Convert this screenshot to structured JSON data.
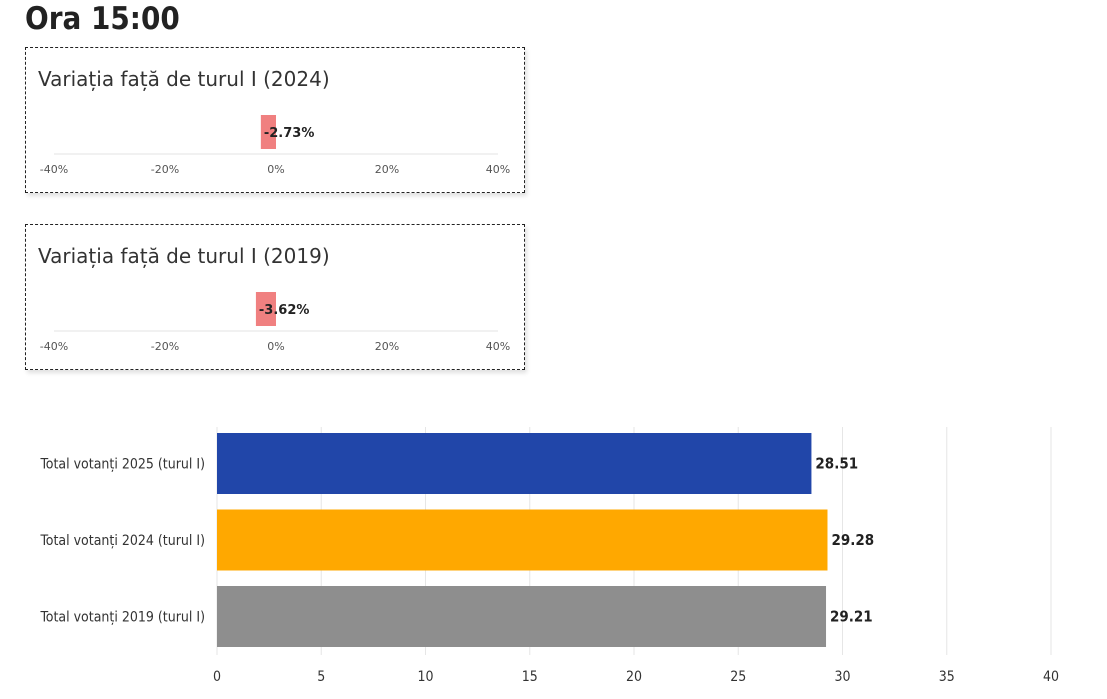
{
  "page": {
    "title": "Ora 15:00"
  },
  "colors": {
    "variation_bar": "#f08080",
    "bar_2025": "#2146a9",
    "bar_2024": "#ffa800",
    "bar_2019": "#8e8e8e",
    "grid": "#e6e6e6"
  },
  "chart_data": [
    {
      "type": "bar",
      "orientation": "horizontal",
      "title": "Variația față de turul I (2024)",
      "values": [
        -2.73
      ],
      "value_labels": [
        "-2.73%"
      ],
      "xlim": [
        -40,
        40
      ],
      "ticks": [
        -40,
        -20,
        0,
        20,
        40
      ],
      "tick_labels": [
        "-40%",
        "-20%",
        "0%",
        "20%",
        "40%"
      ]
    },
    {
      "type": "bar",
      "orientation": "horizontal",
      "title": "Variația față de turul I (2019)",
      "values": [
        -3.62
      ],
      "value_labels": [
        "-3.62%"
      ],
      "xlim": [
        -40,
        40
      ],
      "ticks": [
        -40,
        -20,
        0,
        20,
        40
      ],
      "tick_labels": [
        "-40%",
        "-20%",
        "0%",
        "20%",
        "40%"
      ]
    },
    {
      "type": "bar",
      "orientation": "horizontal",
      "categories": [
        "Total votanți 2025 (turul I)",
        "Total votanți 2024 (turul I)",
        "Total votanți 2019 (turul I)"
      ],
      "values": [
        28.51,
        29.28,
        29.21
      ],
      "value_labels": [
        "28.51",
        "29.28",
        "29.21"
      ],
      "xlim": [
        0,
        40
      ],
      "ticks": [
        0,
        5,
        10,
        15,
        20,
        25,
        30,
        35,
        40
      ],
      "grid": true
    }
  ]
}
